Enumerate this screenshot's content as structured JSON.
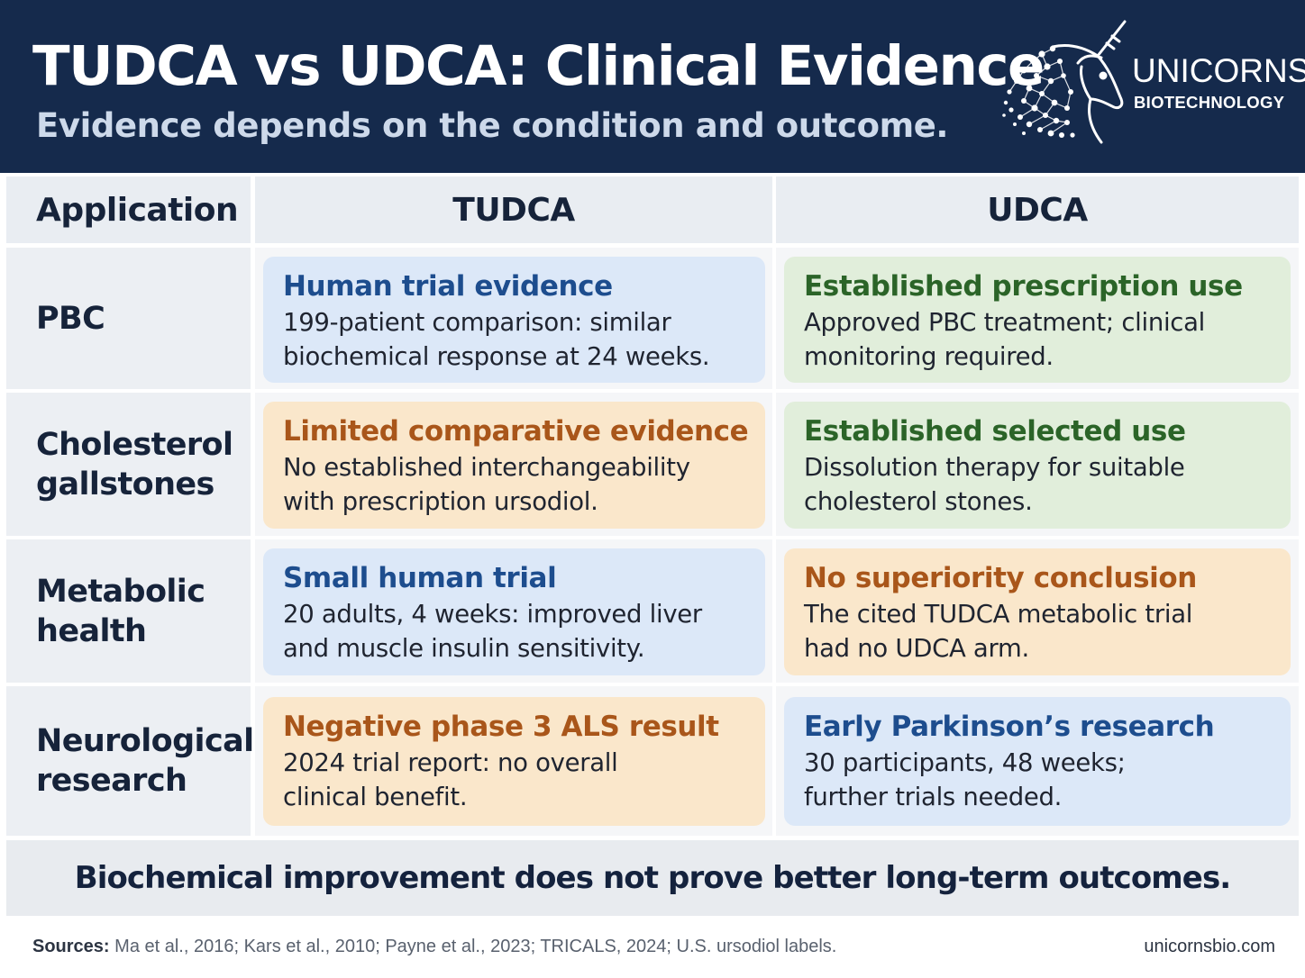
{
  "header": {
    "title": "TUDCA vs UDCA: Clinical Evidence",
    "subtitle": "Evidence depends on the condition and outcome."
  },
  "brand": {
    "name": "UNICORNS",
    "sub": "BIOTECHNOLOGY",
    "logo_icon": "unicorn-head-logo-icon"
  },
  "table": {
    "headers": {
      "application": "Application",
      "tudca": "TUDCA",
      "udca": "UDCA"
    },
    "rows": [
      {
        "application": "PBC",
        "tudca": {
          "title": "Human trial evidence",
          "line1": "199-patient comparison: similar",
          "line2": "biochemical response at 24 weeks.",
          "tone": "blue"
        },
        "udca": {
          "title": "Established prescription use",
          "line1": "Approved PBC treatment; clinical",
          "line2": "monitoring required.",
          "tone": "green"
        }
      },
      {
        "application": "Cholesterol\ngallstones",
        "tudca": {
          "title": "Limited comparative evidence",
          "line1": "No established interchangeability",
          "line2": "with prescription ursodiol.",
          "tone": "orange"
        },
        "udca": {
          "title": "Established selected use",
          "line1": "Dissolution therapy for suitable",
          "line2": "cholesterol stones.",
          "tone": "green"
        }
      },
      {
        "application": "Metabolic\nhealth",
        "tudca": {
          "title": "Small human trial",
          "line1": "20 adults, 4 weeks: improved liver",
          "line2": "and muscle insulin sensitivity.",
          "tone": "blue"
        },
        "udca": {
          "title": "No superiority conclusion",
          "line1": "The cited TUDCA metabolic trial",
          "line2": "had no UDCA arm.",
          "tone": "orange"
        }
      },
      {
        "application": "Neurological\nresearch",
        "tudca": {
          "title": "Negative phase 3 ALS result",
          "line1": "2024 trial report: no overall",
          "line2": "clinical benefit.",
          "tone": "orange"
        },
        "udca": {
          "title": "Early Parkinson’s research",
          "line1": "30 participants, 48 weeks;",
          "line2": "further trials needed.",
          "tone": "blue"
        }
      }
    ]
  },
  "conclusion": "Biochemical improvement does not prove better long-term outcomes.",
  "footer": {
    "sources_label": "Sources:",
    "sources_text": "Ma et al., 2016; Kars et al., 2010; Payne et al., 2023; TRICALS, 2024; U.S. ursodiol labels.",
    "website": "unicornsbio.com"
  },
  "colors": {
    "header_bg": "#152a4c",
    "blue_card": "#dce8f8",
    "green_card": "#e1eedb",
    "orange_card": "#fae7cb"
  }
}
